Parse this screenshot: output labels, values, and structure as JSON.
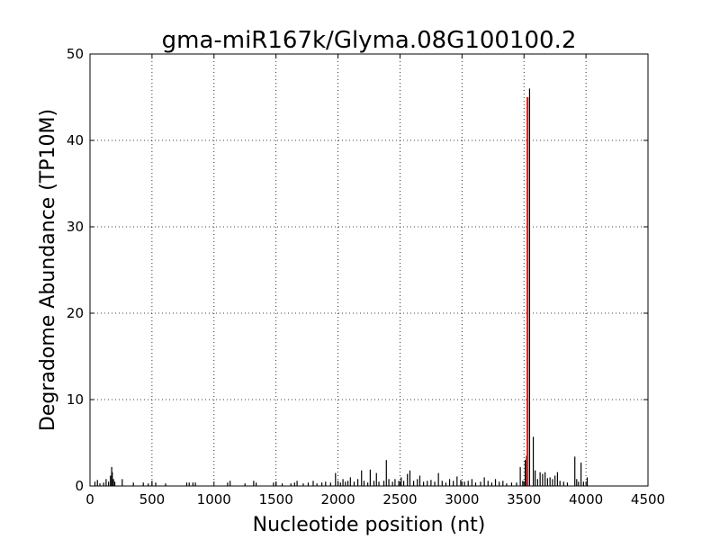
{
  "chart_data": {
    "type": "bar",
    "title": "gma-miR167k/Glyma.08G100100.2",
    "xlabel": "Nucleotide position (nt)",
    "ylabel": "Degradome Abundance (TP10M)",
    "xlim": [
      0,
      4500
    ],
    "ylim": [
      0,
      50
    ],
    "x_ticks": [
      "0",
      "500",
      "1000",
      "1500",
      "2000",
      "2500",
      "3000",
      "3500",
      "4000",
      "4500"
    ],
    "y_ticks": [
      "0",
      "10",
      "20",
      "30",
      "40",
      "50"
    ],
    "grid": true,
    "legend": "none",
    "colors": {
      "background": "#000000",
      "highlight": "#d62728"
    },
    "series": [
      {
        "role": "background",
        "points": [
          [
            40,
            0.5
          ],
          [
            60,
            0.7
          ],
          [
            80,
            0.3
          ],
          [
            110,
            0.4
          ],
          [
            130,
            0.8
          ],
          [
            150,
            0.5
          ],
          [
            165,
            1.2
          ],
          [
            175,
            2.2
          ],
          [
            180,
            1.6
          ],
          [
            190,
            0.8
          ],
          [
            200,
            0.5
          ],
          [
            260,
            0.8
          ],
          [
            350,
            0.4
          ],
          [
            430,
            0.4
          ],
          [
            470,
            0.3
          ],
          [
            500,
            0.6
          ],
          [
            530,
            0.4
          ],
          [
            610,
            0.3
          ],
          [
            780,
            0.4
          ],
          [
            800,
            0.4
          ],
          [
            830,
            0.4
          ],
          [
            850,
            0.4
          ],
          [
            1110,
            0.4
          ],
          [
            1130,
            0.6
          ],
          [
            1250,
            0.3
          ],
          [
            1320,
            0.6
          ],
          [
            1340,
            0.4
          ],
          [
            1480,
            0.4
          ],
          [
            1500,
            0.5
          ],
          [
            1550,
            0.3
          ],
          [
            1620,
            0.3
          ],
          [
            1650,
            0.4
          ],
          [
            1670,
            0.6
          ],
          [
            1720,
            0.3
          ],
          [
            1760,
            0.4
          ],
          [
            1800,
            0.6
          ],
          [
            1830,
            0.3
          ],
          [
            1870,
            0.4
          ],
          [
            1900,
            0.5
          ],
          [
            1940,
            0.4
          ],
          [
            1980,
            1.5
          ],
          [
            2000,
            0.6
          ],
          [
            2020,
            0.4
          ],
          [
            2040,
            0.8
          ],
          [
            2060,
            0.5
          ],
          [
            2080,
            0.6
          ],
          [
            2100,
            1.0
          ],
          [
            2130,
            0.5
          ],
          [
            2160,
            0.8
          ],
          [
            2190,
            1.8
          ],
          [
            2210,
            0.6
          ],
          [
            2240,
            0.4
          ],
          [
            2260,
            1.9
          ],
          [
            2290,
            0.6
          ],
          [
            2310,
            1.5
          ],
          [
            2330,
            0.5
          ],
          [
            2370,
            0.6
          ],
          [
            2390,
            3.0
          ],
          [
            2410,
            0.8
          ],
          [
            2440,
            0.5
          ],
          [
            2460,
            0.8
          ],
          [
            2490,
            0.6
          ],
          [
            2510,
            1.0
          ],
          [
            2530,
            0.6
          ],
          [
            2560,
            1.4
          ],
          [
            2580,
            1.8
          ],
          [
            2610,
            0.6
          ],
          [
            2640,
            0.8
          ],
          [
            2660,
            1.2
          ],
          [
            2690,
            0.5
          ],
          [
            2720,
            0.6
          ],
          [
            2750,
            0.7
          ],
          [
            2780,
            0.5
          ],
          [
            2810,
            1.5
          ],
          [
            2840,
            0.6
          ],
          [
            2870,
            0.4
          ],
          [
            2900,
            0.8
          ],
          [
            2930,
            0.6
          ],
          [
            2960,
            1.1
          ],
          [
            2990,
            0.7
          ],
          [
            3020,
            0.5
          ],
          [
            3050,
            0.6
          ],
          [
            3080,
            0.8
          ],
          [
            3110,
            0.4
          ],
          [
            3150,
            0.5
          ],
          [
            3180,
            1.0
          ],
          [
            3210,
            0.6
          ],
          [
            3240,
            0.4
          ],
          [
            3270,
            0.8
          ],
          [
            3300,
            0.5
          ],
          [
            3330,
            0.6
          ],
          [
            3360,
            0.3
          ],
          [
            3400,
            0.4
          ],
          [
            3440,
            0.4
          ],
          [
            3470,
            2.2
          ],
          [
            3490,
            0.6
          ],
          [
            3510,
            3.0
          ],
          [
            3520,
            3.5
          ],
          [
            3545,
            46.0
          ],
          [
            3575,
            5.7
          ],
          [
            3590,
            1.8
          ],
          [
            3610,
            0.8
          ],
          [
            3630,
            1.6
          ],
          [
            3650,
            1.4
          ],
          [
            3670,
            1.6
          ],
          [
            3690,
            0.9
          ],
          [
            3710,
            1.0
          ],
          [
            3730,
            0.8
          ],
          [
            3750,
            1.2
          ],
          [
            3770,
            1.6
          ],
          [
            3790,
            0.6
          ],
          [
            3820,
            0.5
          ],
          [
            3850,
            0.4
          ],
          [
            3910,
            3.4
          ],
          [
            3925,
            0.8
          ],
          [
            3940,
            0.5
          ],
          [
            3960,
            2.7
          ],
          [
            3980,
            0.5
          ],
          [
            4010,
            1.0
          ]
        ]
      },
      {
        "role": "highlight",
        "points": [
          [
            3528,
            45.0
          ]
        ]
      }
    ]
  }
}
